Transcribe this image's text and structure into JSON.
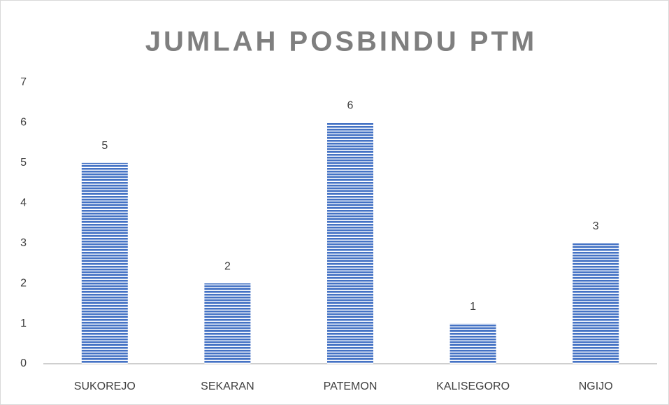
{
  "chart_data": {
    "type": "bar",
    "title": "JUMLAH POSBINDU PTM",
    "categories": [
      "SUKOREJO",
      "SEKARAN",
      "PATEMON",
      "KALISEGORO",
      "NGIJO"
    ],
    "values": [
      5,
      2,
      6,
      1,
      3
    ],
    "color": "#4472c4",
    "ylim": [
      0,
      7
    ],
    "yticks": [
      0,
      1,
      2,
      3,
      4,
      5,
      6,
      7
    ],
    "grid": false
  }
}
